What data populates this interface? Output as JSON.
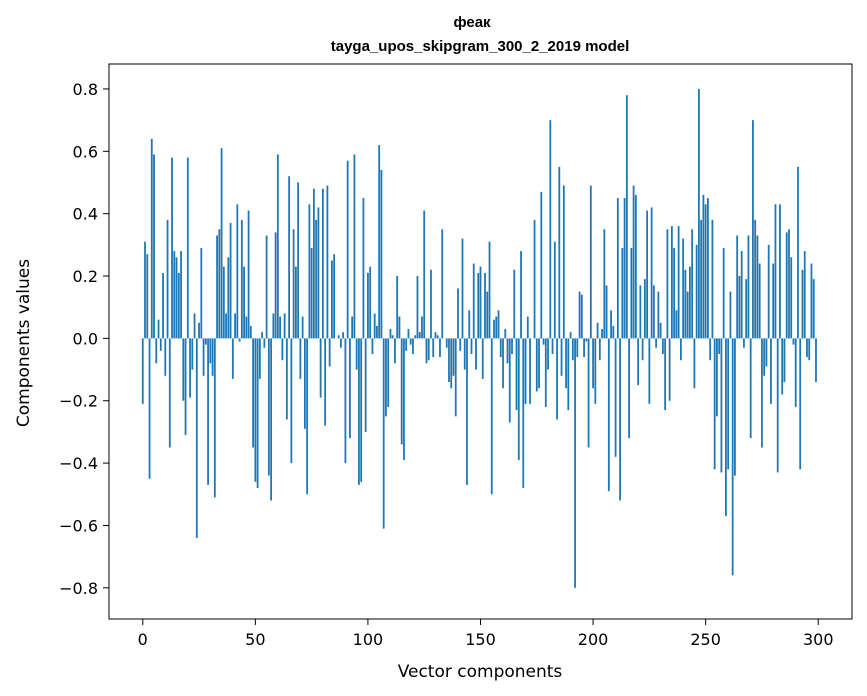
{
  "chart_data": {
    "type": "bar",
    "title_line1": "феак",
    "title_line2": "tayga_upos_skipgram_300_2_2019 model",
    "xlabel": "Vector components",
    "ylabel": "Components values",
    "xlim": [
      -15,
      315
    ],
    "ylim": [
      -0.9,
      0.88
    ],
    "xticks": [
      0,
      50,
      100,
      150,
      200,
      250,
      300
    ],
    "xtick_labels": [
      "0",
      "50",
      "100",
      "150",
      "200",
      "250",
      "300"
    ],
    "yticks": [
      0.8,
      0.6,
      0.4,
      0.2,
      0.0,
      -0.2,
      -0.4,
      -0.6,
      -0.8
    ],
    "ytick_labels": [
      "0.8",
      "0.6",
      "0.4",
      "0.2",
      "0.0",
      "−0.2",
      "−0.4",
      "−0.6",
      "−0.8"
    ],
    "bar_color": "#1f77b4",
    "values": [
      -0.21,
      0.31,
      0.27,
      -0.45,
      0.64,
      0.59,
      -0.08,
      0.06,
      -0.04,
      0.21,
      -0.12,
      0.38,
      -0.35,
      0.58,
      0.28,
      0.26,
      0.21,
      0.28,
      -0.2,
      -0.31,
      0.58,
      -0.19,
      -0.1,
      0.08,
      -0.64,
      0.05,
      0.29,
      -0.12,
      -0.02,
      -0.47,
      -0.08,
      -0.12,
      -0.51,
      0.33,
      0.35,
      0.61,
      0.23,
      0.08,
      0.26,
      0.37,
      -0.13,
      0.08,
      0.43,
      -0.01,
      0.38,
      0.23,
      0.07,
      0.41,
      0.04,
      -0.35,
      -0.46,
      -0.48,
      -0.13,
      0.02,
      -0.03,
      0.33,
      -0.44,
      -0.52,
      0.08,
      0.34,
      0.59,
      0.07,
      -0.07,
      0.08,
      -0.26,
      0.52,
      -0.4,
      0.35,
      0.23,
      0.5,
      -0.13,
      0.07,
      -0.29,
      -0.5,
      0.43,
      0.29,
      0.48,
      0.38,
      0.42,
      -0.19,
      0.48,
      -0.28,
      0.49,
      -0.09,
      0.25,
      0.27,
      0.0,
      0.01,
      -0.03,
      0.02,
      -0.4,
      0.57,
      -0.32,
      0.07,
      0.59,
      -0.1,
      -0.47,
      -0.46,
      0.45,
      -0.3,
      0.21,
      0.23,
      -0.05,
      0.08,
      0.04,
      0.62,
      0.54,
      -0.61,
      -0.25,
      -0.22,
      0.03,
      0.01,
      -0.08,
      0.2,
      0.07,
      -0.34,
      -0.39,
      -0.04,
      0.03,
      -0.02,
      -0.05,
      0.01,
      0.2,
      0.02,
      0.07,
      0.41,
      -0.08,
      -0.07,
      0.22,
      -0.06,
      0.02,
      0.01,
      -0.06,
      0.35,
      0.0,
      -0.03,
      -0.14,
      -0.16,
      -0.12,
      -0.25,
      0.16,
      -0.04,
      0.32,
      -0.1,
      -0.47,
      0.09,
      -0.05,
      0.24,
      -0.1,
      0.21,
      0.23,
      -0.13,
      0.21,
      0.15,
      0.31,
      -0.5,
      0.06,
      0.07,
      0.09,
      -0.06,
      -0.16,
      0.03,
      -0.08,
      -0.27,
      -0.05,
      0.22,
      -0.23,
      -0.39,
      0.28,
      -0.48,
      -0.21,
      0.07,
      -0.21,
      0.0,
      0.38,
      -0.17,
      -0.16,
      0.47,
      -0.02,
      -0.22,
      -0.1,
      0.7,
      -0.05,
      0.31,
      -0.26,
      0.55,
      -0.12,
      0.49,
      -0.16,
      -0.23,
      0.02,
      -0.07,
      -0.8,
      -0.06,
      0.15,
      0.14,
      -0.06,
      -0.01,
      -0.35,
      0.49,
      -0.16,
      -0.21,
      0.05,
      -0.07,
      0.03,
      0.35,
      0.17,
      -0.49,
      0.09,
      0.04,
      -0.38,
      0.45,
      -0.52,
      0.29,
      0.45,
      0.78,
      -0.32,
      0.29,
      0.49,
      0.46,
      -0.15,
      0.17,
      -0.07,
      0.19,
      0.41,
      -0.21,
      0.42,
      0.17,
      -0.03,
      0.15,
      0.05,
      -0.05,
      -0.23,
      0.35,
      -0.2,
      0.36,
      0.29,
      0.09,
      0.36,
      -0.07,
      0.32,
      0.22,
      0.15,
      0.23,
      0.35,
      -0.16,
      0.3,
      0.8,
      0.38,
      0.46,
      0.43,
      0.45,
      -0.07,
      0.38,
      -0.42,
      -0.25,
      -0.05,
      -0.43,
      0.29,
      -0.57,
      -0.42,
      0.15,
      -0.76,
      -0.44,
      0.33,
      0.2,
      0.28,
      -0.03,
      0.19,
      0.33,
      -0.32,
      0.7,
      0.38,
      0.33,
      0.24,
      -0.35,
      -0.12,
      -0.09,
      0.3,
      -0.21,
      0.24,
      0.43,
      -0.43,
      0.43,
      -0.18,
      -0.14,
      0.34,
      0.35,
      0.26,
      -0.02,
      -0.22,
      0.55,
      -0.42,
      0.22,
      0.28,
      -0.06,
      -0.07,
      0.24,
      0.19,
      -0.14
    ]
  }
}
